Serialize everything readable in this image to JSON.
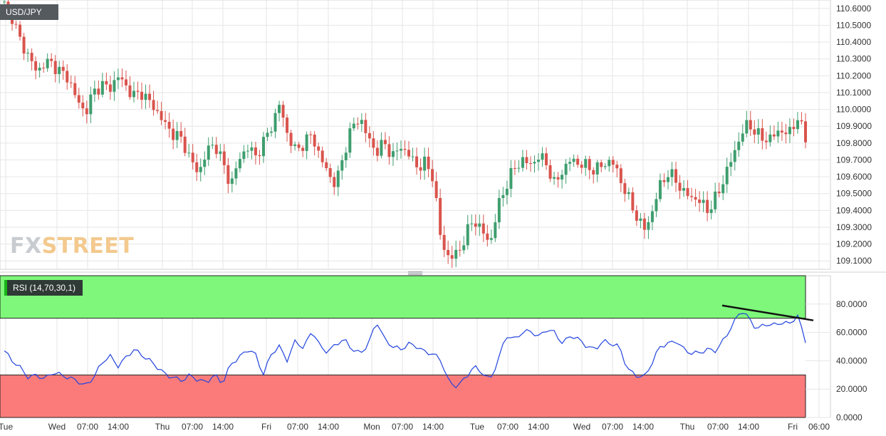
{
  "symbol_label": "USD/JPY",
  "rsi_label": "RSI (14,70,30,1)",
  "logo": {
    "part1": "FX",
    "part2": "STREET"
  },
  "colors": {
    "up": "#3e9e6e",
    "down": "#d9544d",
    "rsi_line": "#2244dd",
    "overbought_zone": "#7ef77a",
    "oversold_zone": "#fb7b7b",
    "grid": "#e6e6e6",
    "trendline": "#111111"
  },
  "chart_data": [
    {
      "type": "candlestick",
      "title": "USD/JPY",
      "y_ticks": [
        "110.6000",
        "110.5000",
        "110.4000",
        "110.3000",
        "110.2000",
        "110.1000",
        "110.0000",
        "109.9000",
        "109.8000",
        "109.7000",
        "109.6000",
        "109.5000",
        "109.4000",
        "109.3000",
        "109.2000",
        "109.1000"
      ],
      "ylim": [
        109.05,
        110.65
      ],
      "x_ticks": [
        "Tue",
        "Wed",
        "07:00",
        "14:00",
        "Thu",
        "07:00",
        "14:00",
        "Fri",
        "07:00",
        "14:00",
        "Mon",
        "07:00",
        "14:00",
        "Tue",
        "07:00",
        "14:00",
        "Wed",
        "07:00",
        "14:00",
        "Thu",
        "07:00",
        "14:00",
        "Fri",
        "06:00"
      ],
      "grid": true,
      "anchors": [
        110.62,
        110.55,
        110.4,
        110.32,
        110.22,
        110.28,
        110.27,
        110.22,
        110.18,
        110.05,
        109.98,
        110.1,
        110.15,
        110.12,
        110.2,
        110.14,
        110.08,
        110.1,
        110.04,
        109.98,
        109.9,
        109.85,
        109.82,
        109.7,
        109.62,
        109.75,
        109.8,
        109.68,
        109.55,
        109.7,
        109.78,
        109.72,
        109.8,
        109.9,
        110.03,
        109.85,
        109.75,
        109.8,
        109.85,
        109.72,
        109.62,
        109.55,
        109.75,
        109.9,
        109.95,
        109.82,
        109.75,
        109.8,
        109.72,
        109.78,
        109.73,
        109.66,
        109.68,
        109.6,
        109.2,
        109.12,
        109.14,
        109.25,
        109.35,
        109.28,
        109.2,
        109.42,
        109.55,
        109.65,
        109.7,
        109.67,
        109.72,
        109.68,
        109.55,
        109.64,
        109.7,
        109.68,
        109.66,
        109.64,
        109.67,
        109.7,
        109.6,
        109.48,
        109.38,
        109.28,
        109.38,
        109.55,
        109.62,
        109.58,
        109.5,
        109.48,
        109.45,
        109.4,
        109.48,
        109.6,
        109.72,
        109.85,
        109.92,
        109.85,
        109.82,
        109.84,
        109.88,
        109.85,
        109.96,
        109.82
      ]
    },
    {
      "type": "line",
      "title": "RSI (14,70,30,1)",
      "y_ticks": [
        "80.0000",
        "60.0000",
        "40.0000",
        "20.0000",
        "0.0000"
      ],
      "ylim": [
        0,
        100
      ],
      "overbought": 70,
      "oversold": 30,
      "grid": true,
      "anchors": [
        47,
        40,
        35,
        28,
        30,
        27,
        32,
        30,
        28,
        26,
        22,
        28,
        38,
        44,
        36,
        42,
        48,
        44,
        40,
        35,
        30,
        28,
        26,
        30,
        26,
        25,
        30,
        24,
        38,
        42,
        48,
        45,
        30,
        45,
        50,
        40,
        55,
        48,
        62,
        50,
        46,
        52,
        55,
        48,
        45,
        52,
        68,
        55,
        50,
        48,
        52,
        50,
        46,
        45,
        40,
        24,
        22,
        28,
        36,
        32,
        26,
        40,
        58,
        55,
        60,
        61,
        57,
        62,
        60,
        52,
        58,
        55,
        50,
        48,
        54,
        52,
        50,
        34,
        30,
        28,
        38,
        50,
        52,
        54,
        48,
        45,
        46,
        48,
        47,
        56,
        65,
        76,
        70,
        62,
        66,
        65,
        67,
        66,
        72,
        54
      ],
      "trendline": {
        "from": [
          90,
          79
        ],
        "to": [
          100,
          70
        ]
      }
    }
  ]
}
